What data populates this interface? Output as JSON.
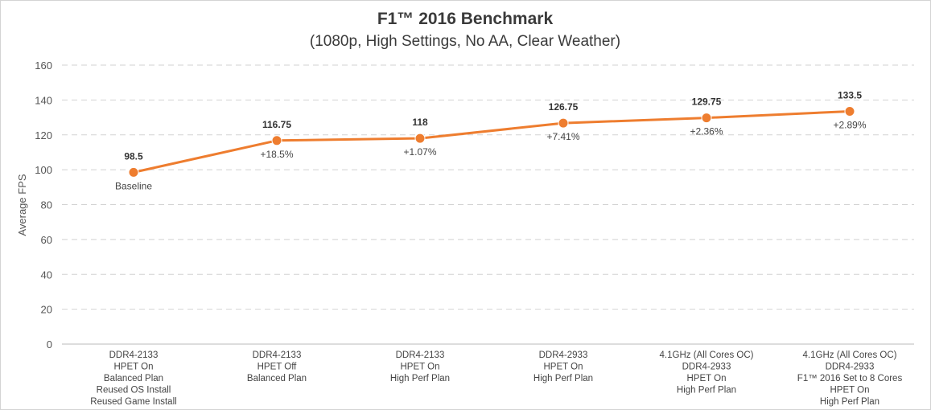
{
  "chart_data": {
    "type": "line",
    "title": "F1™ 2016 Benchmark",
    "subtitle": "(1080p, High Settings, No AA, Clear Weather)",
    "ylabel": "Average FPS",
    "xlabel": "",
    "ylim": [
      0,
      160
    ],
    "yticks": [
      0,
      20,
      40,
      60,
      80,
      100,
      120,
      140,
      160
    ],
    "grid": true,
    "categories": [
      [
        "DDR4-2133",
        "HPET On",
        "Balanced Plan",
        "Reused OS Install",
        "Reused Game Install"
      ],
      [
        "DDR4-2133",
        "HPET Off",
        "Balanced Plan"
      ],
      [
        "DDR4-2133",
        "HPET On",
        "High Perf Plan"
      ],
      [
        "DDR4-2933",
        "HPET On",
        "High Perf Plan"
      ],
      [
        "4.1GHz (All Cores OC)",
        "DDR4-2933",
        "HPET On",
        "High Perf Plan"
      ],
      [
        "4.1GHz (All Cores OC)",
        "DDR4-2933",
        "F1™ 2016 Set to 8 Cores",
        "HPET On",
        "High Perf Plan"
      ]
    ],
    "series": [
      {
        "values": [
          98.5,
          116.75,
          118,
          126.75,
          129.75,
          133.5
        ],
        "value_labels": [
          "98.5",
          "116.75",
          "118",
          "126.75",
          "129.75",
          "133.5"
        ],
        "change_labels": [
          "Baseline",
          "+18.5%",
          "+1.07%",
          "+7.41%",
          "+2.36%",
          "+2.89%"
        ],
        "color": "#ee7d2f"
      }
    ],
    "colors": {
      "grid": "#d2d2d2",
      "axis": "#bbbbbb",
      "text": "#444444"
    }
  }
}
